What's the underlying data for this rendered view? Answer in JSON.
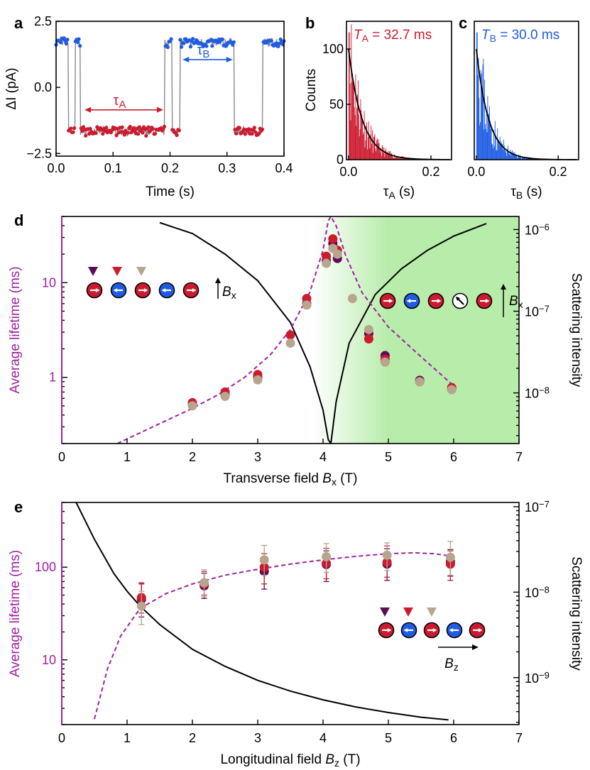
{
  "colors": {
    "red": "#cc1b2f",
    "blue": "#1f5ce3",
    "purple": "#a020a0",
    "dark_purple": "#5b0e55",
    "taupe": "#b7a58e",
    "green": "#b8ecaa",
    "line_gray": "#8a8a8a"
  },
  "chart_data": [
    {
      "panel": "a",
      "type": "line",
      "title": "",
      "xlabel": "Time (s)",
      "ylabel": "ΔI (pA)",
      "xlim": [
        0,
        0.4
      ],
      "ylim": [
        -2.6,
        2.5
      ],
      "xticks": [
        "0.0",
        "0.1",
        "0.2",
        "0.3",
        "0.4"
      ],
      "yticks": [
        "2.5",
        "0.0",
        "−2.5"
      ],
      "levels": {
        "A": -1.65,
        "B": 1.7
      },
      "state_segments": [
        {
          "state": "B",
          "start": 0.0,
          "end": 0.022
        },
        {
          "state": "A",
          "start": 0.022,
          "end": 0.034
        },
        {
          "state": "B",
          "start": 0.034,
          "end": 0.043
        },
        {
          "state": "A",
          "start": 0.043,
          "end": 0.191
        },
        {
          "state": "B",
          "start": 0.191,
          "end": 0.203
        },
        {
          "state": "A",
          "start": 0.203,
          "end": 0.218
        },
        {
          "state": "B",
          "start": 0.218,
          "end": 0.313
        },
        {
          "state": "A",
          "start": 0.313,
          "end": 0.363
        },
        {
          "state": "B",
          "start": 0.363,
          "end": 0.4
        }
      ],
      "annotations": [
        {
          "label": "τ",
          "sub": "A",
          "x_from": 0.05,
          "x_to": 0.188,
          "y": -0.85,
          "color": "red"
        },
        {
          "label": "τ",
          "sub": "B",
          "x_from": 0.222,
          "x_to": 0.31,
          "y": 1.05,
          "color": "blue"
        }
      ]
    },
    {
      "panel": "b",
      "type": "histogram",
      "xlabel": "τ",
      "xlabel_sub": "A",
      "xlabel_unit": " (s)",
      "ylabel": "Counts",
      "xlim": [
        -0.005,
        0.25
      ],
      "ylim": [
        0,
        125
      ],
      "xticks": [
        "0.0",
        "0.2"
      ],
      "yticks": [
        "0",
        "50",
        "100"
      ],
      "fit_tau": 0.0327,
      "fit_amplitude": 100,
      "legend_italic": "T",
      "legend_sub": "A",
      "legend_text": " = 32.7 ms",
      "color": "red"
    },
    {
      "panel": "c",
      "type": "histogram",
      "xlabel": "τ",
      "xlabel_sub": "B",
      "xlabel_unit": " (s)",
      "xlim": [
        -0.005,
        0.25
      ],
      "ylim": [
        0,
        125
      ],
      "xticks": [
        "0.0",
        "0.2"
      ],
      "fit_tau": 0.03,
      "fit_amplitude": 100,
      "legend_italic": "T",
      "legend_sub": "B",
      "legend_text": " = 30.0 ms",
      "color": "blue"
    },
    {
      "panel": "d",
      "type": "scatter",
      "xlabel": "Transverse field ",
      "xlabel_italic": "B",
      "xlabel_sub": "x",
      "xlabel_unit": " (T)",
      "ylabel_left": "Average lifetime (ms)",
      "ylabel_right": "Scattering intensity",
      "xlim": [
        0,
        7
      ],
      "ylim_left_log": [
        0.2,
        50
      ],
      "xticks": [
        "0",
        "1",
        "2",
        "3",
        "4",
        "5",
        "6",
        "7"
      ],
      "yticks_left": [
        "1",
        "10"
      ],
      "yticks_right": [
        "10",
        "10",
        "10"
      ],
      "yticks_right_exp": [
        "−8",
        "−7",
        "−6"
      ],
      "shading_start": 3.85,
      "shading_full": 5.0,
      "series": [
        {
          "name": "dark purple",
          "color": "dark_purple",
          "points": [
            [
              2.0,
              0.52
            ],
            [
              2.5,
              0.66
            ],
            [
              3.0,
              1.0
            ],
            [
              3.75,
              6.0
            ],
            [
              4.05,
              17
            ],
            [
              4.15,
              26
            ],
            [
              4.22,
              18
            ],
            [
              4.7,
              2.9
            ],
            [
              4.95,
              1.7
            ],
            [
              5.48,
              0.93
            ],
            [
              5.97,
              0.75
            ]
          ]
        },
        {
          "name": "red",
          "color": "red",
          "points": [
            [
              2.0,
              0.54
            ],
            [
              2.5,
              0.7
            ],
            [
              3.0,
              1.07
            ],
            [
              3.5,
              2.8
            ],
            [
              3.75,
              6.8
            ],
            [
              4.05,
              19
            ],
            [
              4.15,
              29
            ],
            [
              4.22,
              22
            ],
            [
              4.7,
              2.55
            ],
            [
              4.95,
              1.55
            ],
            [
              5.48,
              0.9
            ],
            [
              5.97,
              0.78
            ]
          ]
        },
        {
          "name": "taupe",
          "color": "taupe",
          "points": [
            [
              2.0,
              0.5
            ],
            [
              2.5,
              0.63
            ],
            [
              3.0,
              0.94
            ],
            [
              3.5,
              2.3
            ],
            [
              3.75,
              5.8
            ],
            [
              4.05,
              16
            ],
            [
              4.15,
              23
            ],
            [
              4.22,
              20
            ],
            [
              4.45,
              6.8
            ],
            [
              4.7,
              3.2
            ],
            [
              4.95,
              1.45
            ],
            [
              5.48,
              0.9
            ],
            [
              5.97,
              0.74
            ]
          ]
        }
      ],
      "fit_dashed": {
        "x": [
          0.85,
          1.2,
          1.6,
          2.0,
          2.4,
          2.8,
          3.2,
          3.5,
          3.8,
          4.0,
          4.08,
          4.12,
          4.2,
          4.35,
          4.6,
          5.0,
          5.5,
          5.97
        ],
        "y": [
          0.2,
          0.26,
          0.35,
          0.47,
          0.66,
          1.0,
          1.75,
          3.2,
          8.0,
          22,
          45,
          50,
          40,
          19,
          7.8,
          3.4,
          1.65,
          0.85
        ]
      },
      "fit_solid_scatter": {
        "x": [
          1.5,
          2.0,
          2.5,
          3.0,
          3.5,
          3.8,
          4.0,
          4.08,
          4.12,
          4.2,
          4.4,
          4.8,
          5.2,
          5.6,
          6.0,
          6.5
        ],
        "y": [
          43,
          33,
          20,
          10.5,
          3.8,
          1.3,
          0.45,
          0.22,
          0.2,
          0.55,
          2.3,
          7.5,
          14,
          22,
          31,
          42
        ]
      },
      "legend_markers": [
        "dark_purple",
        "red",
        "taupe"
      ],
      "chain_left": [
        "right",
        "left",
        "right",
        "left",
        "right"
      ],
      "chain_right": [
        "right",
        "left",
        "right",
        "diag",
        "right"
      ],
      "field_label_italic": "B",
      "field_label_sub": "x"
    },
    {
      "panel": "e",
      "type": "scatter",
      "xlabel": "Longitudinal field ",
      "xlabel_italic": "B",
      "xlabel_sub": "z",
      "xlabel_unit": " (T)",
      "ylabel_left": "Average lifetime (ms)",
      "ylabel_right": "Scattering intensity",
      "xlim": [
        0,
        7
      ],
      "ylim_left_log": [
        2,
        500
      ],
      "xticks": [
        "0",
        "1",
        "2",
        "3",
        "4",
        "5",
        "6",
        "7"
      ],
      "yticks_left": [
        "10",
        "100"
      ],
      "yticks_right": [
        "10",
        "10",
        "10"
      ],
      "yticks_right_exp": [
        "−9",
        "−8",
        "−7"
      ],
      "series": [
        {
          "name": "dark purple",
          "color": "dark_purple",
          "points": [
            [
              1.22,
              45,
              66,
              29
            ],
            [
              2.18,
              63,
              86,
              46
            ],
            [
              3.1,
              90,
              125,
              58
            ],
            [
              4.05,
              107,
              150,
              70
            ],
            [
              4.98,
              108,
              158,
              72
            ],
            [
              5.95,
              115,
              155,
              80
            ]
          ]
        },
        {
          "name": "red",
          "color": "red",
          "points": [
            [
              1.22,
              47,
              68,
              32
            ],
            [
              2.18,
              66,
              90,
              50
            ],
            [
              3.1,
              100,
              140,
              66
            ],
            [
              4.05,
              110,
              160,
              75
            ],
            [
              4.98,
              113,
              170,
              78
            ],
            [
              5.95,
              108,
              150,
              72
            ]
          ]
        },
        {
          "name": "taupe",
          "color": "taupe",
          "points": [
            [
              1.22,
              38,
              55,
              24
            ],
            [
              2.18,
              68,
              94,
              48
            ],
            [
              3.1,
              120,
              172,
              82
            ],
            [
              4.05,
              130,
              180,
              88
            ],
            [
              4.98,
              135,
              183,
              92
            ],
            [
              5.95,
              128,
              190,
              82
            ]
          ]
        }
      ],
      "fit_dashed": {
        "x": [
          0.5,
          0.7,
          0.9,
          1.2,
          1.6,
          2.0,
          2.5,
          3.0,
          3.5,
          4.0,
          4.5,
          5.0,
          5.4,
          5.7,
          5.95
        ],
        "y": [
          2.3,
          8,
          18,
          36,
          52,
          66,
          82,
          95,
          108,
          120,
          131,
          140,
          143,
          140,
          132
        ]
      },
      "fit_solid_scatter": {
        "x": [
          0.22,
          0.5,
          0.8,
          1.0,
          1.2,
          1.5,
          2.0,
          2.5,
          3.0,
          3.5,
          4.0,
          4.5,
          5.0,
          5.5,
          5.92
        ],
        "y": [
          500,
          200,
          85,
          55,
          38,
          24,
          13,
          8.5,
          6,
          4.6,
          3.7,
          3.1,
          2.7,
          2.4,
          2.25
        ]
      },
      "legend_markers": [
        "dark_purple",
        "red",
        "taupe"
      ],
      "chain": [
        "right",
        "left",
        "right",
        "left",
        "right"
      ],
      "field_label_italic": "B",
      "field_label_sub": "z"
    }
  ]
}
